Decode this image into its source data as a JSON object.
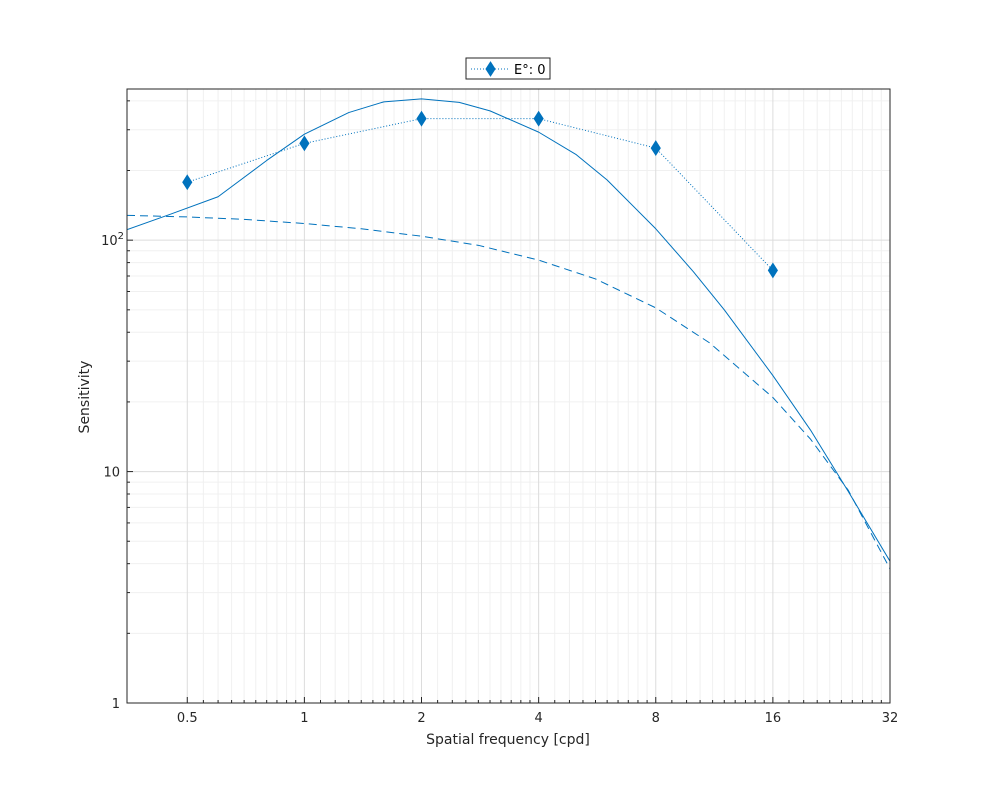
{
  "chart_data": {
    "type": "line",
    "title": "",
    "xlabel": "Spatial frequency [cpd]",
    "ylabel": "Sensitivity",
    "x_scale": "log2",
    "y_scale": "log10",
    "xlim": [
      0.35,
      32
    ],
    "ylim": [
      1,
      450
    ],
    "x_ticks": [
      0.5,
      1,
      2,
      4,
      8,
      16,
      32
    ],
    "x_tick_labels": [
      "0.5",
      "1",
      "2",
      "4",
      "8",
      "16",
      "32"
    ],
    "y_ticks": [
      1,
      10,
      100
    ],
    "y_tick_labels": [
      "1",
      "10",
      "10^2"
    ],
    "grid": true,
    "minor_grid": true,
    "box": true,
    "legend_position": "top-center",
    "color": "#0072bd",
    "series": [
      {
        "name": "E°: 0",
        "style": "dotted-diamond",
        "x": [
          0.5,
          1,
          2,
          4,
          8,
          16
        ],
        "y": [
          178,
          262,
          335,
          335,
          250,
          74
        ]
      },
      {
        "name": "",
        "style": "solid",
        "x": [
          0.35,
          0.45,
          0.6,
          0.8,
          1,
          1.3,
          1.6,
          2,
          2.5,
          3,
          4,
          5,
          6,
          8,
          10,
          12,
          16,
          20,
          25,
          32
        ],
        "y": [
          111,
          129,
          154,
          221,
          287,
          356,
          396,
          408,
          394,
          362,
          293,
          234,
          182,
          112,
          73,
          50,
          26,
          15.1,
          8.2,
          4.1
        ]
      },
      {
        "name": "",
        "style": "dashed",
        "x": [
          0.35,
          0.5,
          0.7,
          1,
          1.4,
          2,
          2.8,
          4,
          5.6,
          8,
          11,
          16,
          20,
          25,
          32
        ],
        "y": [
          128,
          126,
          123,
          118,
          112,
          104,
          95,
          82,
          68,
          51,
          36,
          20.9,
          13.8,
          8.3,
          3.8
        ]
      }
    ]
  }
}
